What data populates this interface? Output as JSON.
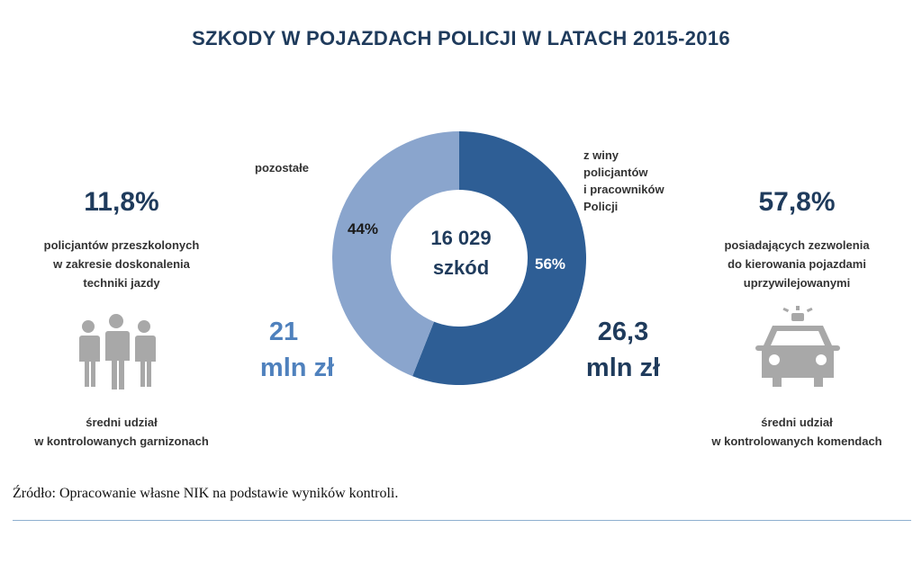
{
  "title": "SZKODY W POJAZDACH POLICJI W LATACH 2015-2016",
  "chart_data": {
    "type": "pie",
    "subtype": "donut",
    "center_count": "16 029",
    "center_unit": "szkód",
    "slices": [
      {
        "label_lines": [
          "z winy",
          "policjantów",
          "i pracowników",
          "Policji"
        ],
        "value": 56,
        "value_label": "56%",
        "amount_line1": "26,3",
        "amount_line2": "mln zł",
        "color": "#2e5e95",
        "label_color": "#ffffff"
      },
      {
        "label_lines": [
          "pozostałe"
        ],
        "value": 44,
        "value_label": "44%",
        "amount_line1": "21",
        "amount_line2": "mln zł",
        "color": "#8aa5cd",
        "label_color": "#1a1a1a"
      }
    ]
  },
  "left_panel": {
    "percent": "11,8%",
    "description_lines": [
      "policjantów przeszkolonych",
      "w zakresie doskonalenia",
      "techniki jazdy"
    ],
    "footer_lines": [
      "średni udział",
      "w kontrolowanych garnizonach"
    ],
    "icon": "people-icon"
  },
  "right_panel": {
    "percent": "57,8%",
    "description_lines": [
      "posiadających zezwolenia",
      "do kierowania pojazdami",
      "uprzywilejowanymi"
    ],
    "footer_lines": [
      "średni udział",
      "w kontrolowanych komendach"
    ],
    "icon": "police-car-icon"
  },
  "source": "Źródło: Opracowanie własne NIK na podstawie wyników kontroli.",
  "colors": {
    "dark_blue": "#1f3b5c",
    "medium_blue": "#2e5e95",
    "light_blue": "#8aa5cd",
    "amount_light": "#4f81bd",
    "icon_gray": "#a8a8a8",
    "rule": "#8fb0cf"
  }
}
